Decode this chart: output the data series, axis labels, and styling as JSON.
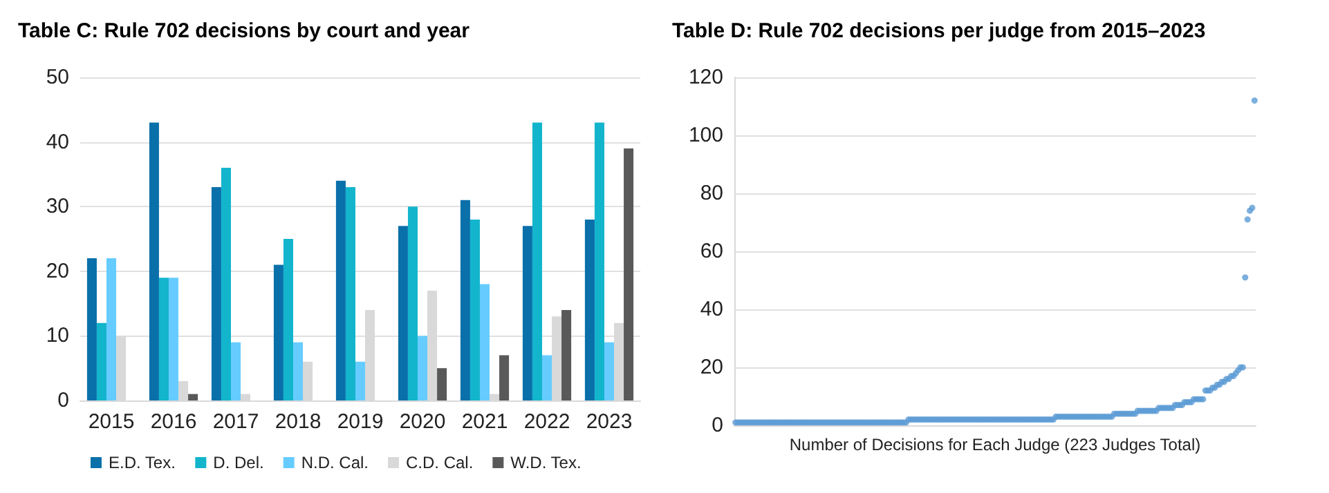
{
  "chart_data": [
    {
      "type": "bar",
      "title": "Table C: Rule 702 decisions by court and year",
      "categories": [
        "2015",
        "2016",
        "2017",
        "2018",
        "2019",
        "2020",
        "2021",
        "2022",
        "2023"
      ],
      "series": [
        {
          "name": "E.D. Tex.",
          "color": "#0a70aa",
          "values": [
            22,
            43,
            33,
            21,
            34,
            27,
            31,
            27,
            28
          ]
        },
        {
          "name": "D. Del.",
          "color": "#12b5cc",
          "values": [
            12,
            19,
            36,
            25,
            33,
            30,
            28,
            43,
            43
          ]
        },
        {
          "name": "N.D. Cal.",
          "color": "#66ccff",
          "values": [
            22,
            19,
            9,
            9,
            6,
            10,
            18,
            7,
            9
          ]
        },
        {
          "name": "C.D. Cal.",
          "color": "#d9d9d9",
          "values": [
            10,
            3,
            1,
            6,
            14,
            17,
            1,
            13,
            12
          ]
        },
        {
          "name": "W.D. Tex.",
          "color": "#595959",
          "values": [
            0,
            1,
            0,
            0,
            0,
            5,
            7,
            14,
            39
          ]
        }
      ],
      "ylim": [
        0,
        50
      ],
      "yticks": [
        0,
        10,
        20,
        30,
        40,
        50
      ],
      "grid": "y",
      "legend": "bottom"
    },
    {
      "type": "scatter",
      "title": "Table D: Rule 702 decisions per judge from 2015–2023",
      "xlabel": "Number of Decisions for Each Judge (223 Judges Total)",
      "categories": [
        null,
        null,
        null,
        null,
        null,
        null,
        null,
        null,
        null,
        null,
        null,
        null,
        null,
        null,
        null,
        null,
        null,
        null,
        null,
        null,
        null,
        null,
        null,
        null,
        null,
        null,
        null,
        null,
        null,
        null,
        null,
        null,
        null,
        null,
        null,
        null,
        null,
        null,
        null,
        null,
        null,
        null,
        null,
        null,
        null,
        null,
        null,
        null,
        null,
        null,
        null,
        null,
        null,
        null,
        null,
        null,
        null,
        null,
        null,
        null,
        null,
        null,
        null,
        null,
        null,
        null,
        null,
        null,
        null,
        null,
        null,
        null,
        null,
        null,
        null,
        null,
        null,
        null,
        null,
        null,
        null,
        null,
        null,
        null,
        null,
        null,
        null,
        null,
        null,
        null,
        null,
        null,
        null,
        null,
        null,
        null,
        null,
        null,
        null,
        null,
        null,
        null,
        null,
        null,
        null,
        null,
        null,
        null,
        null,
        null,
        null,
        null,
        null,
        null,
        null,
        null,
        null,
        null,
        null,
        null,
        null,
        null,
        null,
        null,
        null,
        null,
        null,
        null,
        null,
        null,
        null,
        null,
        null,
        null,
        null,
        null,
        null,
        null,
        null,
        null,
        null,
        null,
        null,
        null,
        null,
        null,
        null,
        null,
        null,
        null,
        null,
        null,
        null,
        null,
        null,
        null,
        null,
        null,
        null,
        null,
        null,
        null,
        null,
        null,
        null,
        null,
        null,
        null,
        null,
        null,
        null,
        null,
        null,
        null,
        null,
        null,
        null,
        null,
        null,
        null,
        null,
        null,
        null,
        null,
        null,
        null,
        null,
        null,
        null,
        null,
        null,
        null,
        null,
        null,
        null,
        null,
        null,
        null,
        null,
        null,
        null,
        null,
        null,
        null,
        null,
        null,
        null,
        null,
        null,
        null,
        null,
        null,
        null,
        null,
        null,
        null,
        null,
        null,
        null,
        null,
        null,
        null,
        null
      ],
      "series": [
        {
          "color": "#5b9bd5",
          "values": [
            1,
            1,
            1,
            1,
            1,
            1,
            1,
            1,
            1,
            1,
            1,
            1,
            1,
            1,
            1,
            1,
            1,
            1,
            1,
            1,
            1,
            1,
            1,
            1,
            1,
            1,
            1,
            1,
            1,
            1,
            1,
            1,
            1,
            1,
            1,
            1,
            1,
            1,
            1,
            1,
            1,
            1,
            1,
            1,
            1,
            1,
            1,
            1,
            1,
            1,
            1,
            1,
            1,
            1,
            1,
            1,
            1,
            1,
            1,
            1,
            1,
            1,
            1,
            1,
            1,
            1,
            1,
            1,
            1,
            1,
            1,
            1,
            1,
            1,
            2,
            2,
            2,
            2,
            2,
            2,
            2,
            2,
            2,
            2,
            2,
            2,
            2,
            2,
            2,
            2,
            2,
            2,
            2,
            2,
            2,
            2,
            2,
            2,
            2,
            2,
            2,
            2,
            2,
            2,
            2,
            2,
            2,
            2,
            2,
            2,
            2,
            2,
            2,
            2,
            2,
            2,
            2,
            2,
            2,
            2,
            2,
            2,
            2,
            2,
            2,
            2,
            2,
            2,
            2,
            2,
            2,
            2,
            2,
            2,
            2,
            2,
            2,
            3,
            3,
            3,
            3,
            3,
            3,
            3,
            3,
            3,
            3,
            3,
            3,
            3,
            3,
            3,
            3,
            3,
            3,
            3,
            3,
            3,
            3,
            3,
            3,
            3,
            4,
            4,
            4,
            4,
            4,
            4,
            4,
            4,
            4,
            4,
            5,
            5,
            5,
            5,
            5,
            5,
            5,
            5,
            5,
            6,
            6,
            6,
            6,
            6,
            6,
            6,
            7,
            7,
            7,
            7,
            8,
            8,
            8,
            8,
            9,
            9,
            9,
            9,
            9,
            12,
            12,
            12,
            13,
            13,
            14,
            14,
            15,
            15,
            16,
            16,
            17,
            17,
            18,
            19,
            20,
            20,
            51,
            71,
            74,
            75,
            112
          ]
        }
      ],
      "ylim": [
        0,
        120
      ],
      "yticks": [
        0,
        20,
        40,
        60,
        80,
        100,
        120
      ],
      "grid": "y",
      "marker": "circle",
      "tick_labels": "y"
    }
  ]
}
